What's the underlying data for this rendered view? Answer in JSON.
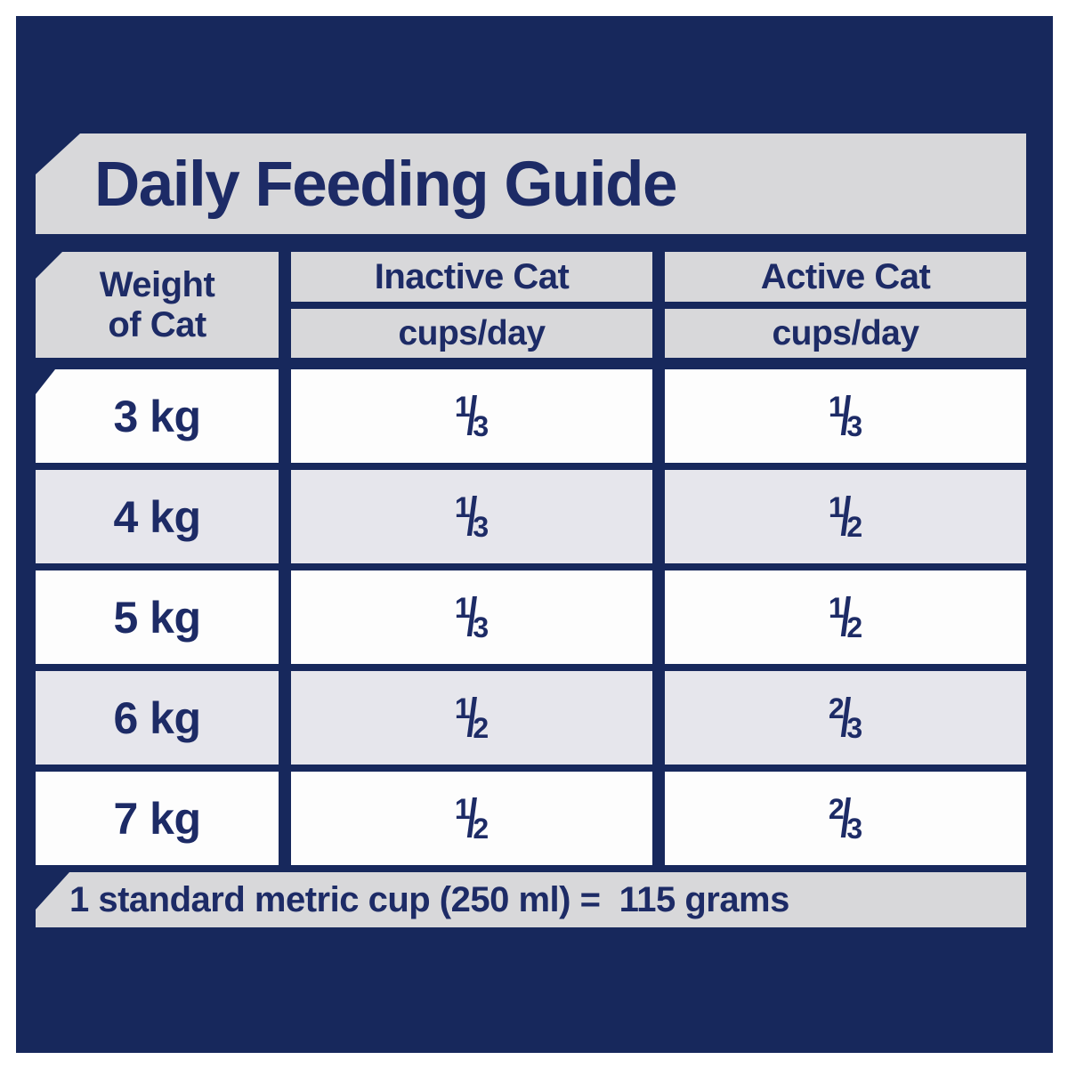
{
  "title": "Daily Feeding Guide",
  "table": {
    "weight_header": {
      "line1": "Weight",
      "line2": "of Cat"
    },
    "columns": [
      {
        "name": "Inactive Cat",
        "unit": "cups/day"
      },
      {
        "name": "Active Cat",
        "unit": "cups/day"
      }
    ],
    "rows": [
      {
        "weight": "3 kg",
        "inactive": {
          "num": "1",
          "den": "3"
        },
        "active": {
          "num": "1",
          "den": "3"
        }
      },
      {
        "weight": "4 kg",
        "inactive": {
          "num": "1",
          "den": "3"
        },
        "active": {
          "num": "1",
          "den": "2"
        }
      },
      {
        "weight": "5 kg",
        "inactive": {
          "num": "1",
          "den": "3"
        },
        "active": {
          "num": "1",
          "den": "2"
        }
      },
      {
        "weight": "6 kg",
        "inactive": {
          "num": "1",
          "den": "2"
        },
        "active": {
          "num": "2",
          "den": "3"
        }
      },
      {
        "weight": "7 kg",
        "inactive": {
          "num": "1",
          "den": "2"
        },
        "active": {
          "num": "2",
          "den": "3"
        }
      }
    ]
  },
  "footnote": "1 standard metric cup (250 ml) =  115 grams",
  "glyphs": {
    "fraction_slash": "/"
  },
  "colors": {
    "navy_panel": "#17285c",
    "text_navy": "#1d2b66",
    "band_gray": "#d8d8da",
    "row_white": "#fdfdfd",
    "row_gray": "#e6e6ec"
  }
}
